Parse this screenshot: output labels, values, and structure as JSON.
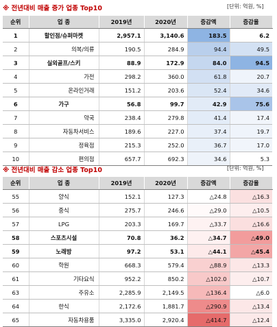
{
  "increase": {
    "title": "※ 전년대비 매출 증가 업종 Top10",
    "unit": "[단위: 억원, %]",
    "headers": [
      "순위",
      "업 종",
      "2019년",
      "2020년",
      "증감액",
      "증감율"
    ],
    "rows": [
      {
        "rank": "1",
        "name": "할인점/슈퍼마켓",
        "y2019": "2,957.1",
        "y2020": "3,140.6",
        "diff": "183.5",
        "rate": "6.2",
        "bold": true,
        "diff_color": "#8eb4e3",
        "rate_color": "#ffffff"
      },
      {
        "rank": "2",
        "name": "의복/의류",
        "y2019": "190.5",
        "y2020": "284.9",
        "diff": "94.4",
        "rate": "49.5",
        "bold": false,
        "diff_color": "#b9cfec",
        "rate_color": "#d3e1f3"
      },
      {
        "rank": "3",
        "name": "실외골프/스키",
        "y2019": "88.9",
        "y2020": "172.9",
        "diff": "84.0",
        "rate": "94.5",
        "bold": true,
        "diff_color": "#c5d7ef",
        "rate_color": "#8eb4e3"
      },
      {
        "rank": "4",
        "name": "가전",
        "y2019": "298.2",
        "y2020": "360.0",
        "diff": "61.8",
        "rate": "20.7",
        "bold": false,
        "diff_color": "#d2e0f3",
        "rate_color": "#eff4fb"
      },
      {
        "rank": "5",
        "name": "온라인거래",
        "y2019": "151.2",
        "y2020": "203.6",
        "diff": "52.4",
        "rate": "34.6",
        "bold": false,
        "diff_color": "#dae6f5",
        "rate_color": "#e1eaf7"
      },
      {
        "rank": "6",
        "name": "가구",
        "y2019": "56.8",
        "y2020": "99.7",
        "diff": "42.9",
        "rate": "75.6",
        "bold": true,
        "diff_color": "#e2ebf7",
        "rate_color": "#a9c4e9"
      },
      {
        "rank": "7",
        "name": "약국",
        "y2019": "238.4",
        "y2020": "279.8",
        "diff": "41.4",
        "rate": "17.4",
        "bold": false,
        "diff_color": "#e3ecf8",
        "rate_color": "#f1f5fb"
      },
      {
        "rank": "8",
        "name": "자동차서비스",
        "y2019": "189.6",
        "y2020": "227.0",
        "diff": "37.4",
        "rate": "19.7",
        "bold": false,
        "diff_color": "#e8eff9",
        "rate_color": "#eff4fb"
      },
      {
        "rank": "9",
        "name": "정육점",
        "y2019": "215.3",
        "y2020": "252.0",
        "diff": "36.7",
        "rate": "17.0",
        "bold": false,
        "diff_color": "#e9f0f9",
        "rate_color": "#f1f5fb"
      },
      {
        "rank": "10",
        "name": "편의점",
        "y2019": "657.7",
        "y2020": "692.3",
        "diff": "34.6",
        "rate": "5.3",
        "bold": false,
        "diff_color": "#eef3fa",
        "rate_color": "#ffffff"
      }
    ]
  },
  "decrease": {
    "title": "※ 전년대비 매출 감소 업종 Top10",
    "unit": "[단위: 억원, %]",
    "headers": [
      "순위",
      "업 종",
      "2019년",
      "2020년",
      "증감액",
      "증감율"
    ],
    "rows": [
      {
        "rank": "55",
        "name": "양식",
        "y2019": "152.1",
        "y2020": "127.3",
        "diff": "△24.8",
        "rate": "△16.3",
        "bold": false,
        "diff_color": "#ffffff",
        "rate_color": "#fbe0e0"
      },
      {
        "rank": "56",
        "name": "중식",
        "y2019": "275.7",
        "y2020": "246.6",
        "diff": "△29.0",
        "rate": "△10.5",
        "bold": false,
        "diff_color": "#fffafa",
        "rate_color": "#fdeeee"
      },
      {
        "rank": "57",
        "name": "LPG",
        "y2019": "203.3",
        "y2020": "169.7",
        "diff": "△33.7",
        "rate": "△16.6",
        "bold": false,
        "diff_color": "#fef2f2",
        "rate_color": "#fbdfdf"
      },
      {
        "rank": "58",
        "name": "스포츠시설",
        "y2019": "70.8",
        "y2020": "36.2",
        "diff": "△34.7",
        "rate": "△49.0",
        "bold": true,
        "diff_color": "#fef1f1",
        "rate_color": "#f29c9c"
      },
      {
        "rank": "59",
        "name": "노래방",
        "y2019": "97.2",
        "y2020": "53.1",
        "diff": "△44.1",
        "rate": "△45.4",
        "bold": true,
        "diff_color": "#fdeaea",
        "rate_color": "#f3a6a6"
      },
      {
        "rank": "60",
        "name": "학원",
        "y2019": "668.3",
        "y2020": "579.4",
        "diff": "△88.9",
        "rate": "△13.3",
        "bold": false,
        "diff_color": "#f9d0d0",
        "rate_color": "#fce7e7"
      },
      {
        "rank": "61",
        "name": "기타요식",
        "y2019": "952.2",
        "y2020": "850.2",
        "diff": "△102.0",
        "rate": "△10.7",
        "bold": false,
        "diff_color": "#f8c9c9",
        "rate_color": "#fdeeee"
      },
      {
        "rank": "63",
        "name": "주유소",
        "y2019": "2,285.9",
        "y2020": "2,149.5",
        "diff": "△136.4",
        "rate": "△6.0",
        "bold": false,
        "diff_color": "#f6b9b9",
        "rate_color": "#ffffff"
      },
      {
        "rank": "64",
        "name": "한식",
        "y2019": "2,172.6",
        "y2020": "1,881.7",
        "diff": "△290.9",
        "rate": "△13.4",
        "bold": false,
        "diff_color": "#ee8b8b",
        "rate_color": "#fce7e7"
      },
      {
        "rank": "65",
        "name": "자동차용품",
        "y2019": "3,335.0",
        "y2020": "2,920.4",
        "diff": "△414.7",
        "rate": "△12.4",
        "bold": false,
        "diff_color": "#e66b6b",
        "rate_color": "#fce9e9"
      }
    ]
  }
}
